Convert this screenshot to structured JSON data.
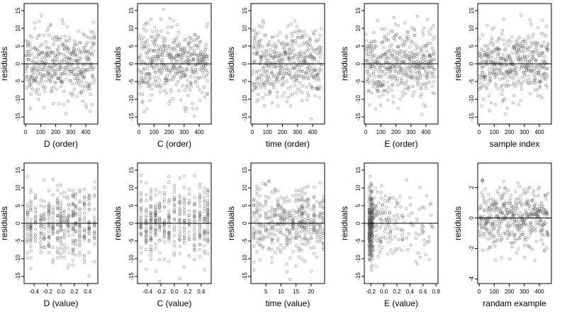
{
  "chart_data": [
    {
      "type": "scatter",
      "xlabel": "D (order)",
      "ylabel": "residuals",
      "xlim": [
        -10,
        480
      ],
      "ylim": [
        -17,
        17
      ],
      "xticks": [
        0,
        100,
        200,
        300,
        400
      ],
      "yticks": [
        -15,
        -10,
        -5,
        0,
        5,
        10,
        15
      ],
      "hline": 0,
      "pattern": "order",
      "seed": 11
    },
    {
      "type": "scatter",
      "xlabel": "C (order)",
      "ylabel": "residuals",
      "xlim": [
        -10,
        480
      ],
      "ylim": [
        -17,
        17
      ],
      "xticks": [
        0,
        100,
        200,
        300,
        400
      ],
      "yticks": [
        -15,
        -10,
        -5,
        0,
        5,
        10,
        15
      ],
      "hline": 0,
      "pattern": "order",
      "seed": 23
    },
    {
      "type": "scatter",
      "xlabel": "time (order)",
      "ylabel": "residuals",
      "xlim": [
        -10,
        480
      ],
      "ylim": [
        -17,
        17
      ],
      "xticks": [
        0,
        100,
        200,
        300,
        400
      ],
      "yticks": [
        -15,
        -10,
        -5,
        0,
        5,
        10,
        15
      ],
      "hline": 0,
      "pattern": "order",
      "seed": 37
    },
    {
      "type": "scatter",
      "xlabel": "E (order)",
      "ylabel": "residuals",
      "xlim": [
        -10,
        480
      ],
      "ylim": [
        -17,
        17
      ],
      "xticks": [
        0,
        100,
        200,
        300,
        400
      ],
      "yticks": [
        -15,
        -10,
        -5,
        0,
        5,
        10,
        15
      ],
      "hline": 0,
      "pattern": "order",
      "seed": 41
    },
    {
      "type": "scatter",
      "xlabel": "sample index",
      "ylabel": "residuals",
      "xlim": [
        -10,
        480
      ],
      "ylim": [
        -17,
        17
      ],
      "xticks": [
        0,
        100,
        200,
        300,
        400
      ],
      "yticks": [
        -15,
        -10,
        -5,
        0,
        5,
        10,
        15
      ],
      "hline": 0,
      "pattern": "order",
      "seed": 53
    },
    {
      "type": "scatter",
      "xlabel": "D (value)",
      "ylabel": "residuals",
      "xlim": [
        -0.55,
        0.55
      ],
      "ylim": [
        -17,
        17
      ],
      "xticks": [
        -0.4,
        -0.2,
        0.0,
        0.2,
        0.4
      ],
      "xtick_labels": [
        "-0.4",
        "-0.2",
        "0.0",
        "0.2",
        "0.4"
      ],
      "yticks": [
        -15,
        -10,
        -5,
        0,
        5,
        10,
        15
      ],
      "hline": 0,
      "pattern": "columns",
      "columns": [
        -0.5,
        -0.45,
        -0.38,
        -0.3,
        -0.25,
        -0.18,
        -0.12,
        -0.05,
        0.0,
        0.05,
        0.1,
        0.12,
        0.18,
        0.22,
        0.28,
        0.35,
        0.42,
        0.5
      ],
      "seed": 61
    },
    {
      "type": "scatter",
      "xlabel": "C (value)",
      "ylabel": "residuals",
      "xlim": [
        -0.55,
        0.55
      ],
      "ylim": [
        -17,
        17
      ],
      "xticks": [
        -0.4,
        -0.2,
        0.0,
        0.2,
        0.4
      ],
      "xtick_labels": [
        "-0.4",
        "-0.2",
        "0.0",
        "0.2",
        "0.4"
      ],
      "yticks": [
        -15,
        -10,
        -5,
        0,
        5,
        10,
        15
      ],
      "hline": 0,
      "pattern": "columns",
      "columns": [
        -0.5,
        -0.42,
        -0.35,
        -0.28,
        -0.22,
        -0.15,
        -0.08,
        0.0,
        0.08,
        0.15,
        0.22,
        0.3,
        0.38,
        0.45,
        0.5
      ],
      "seed": 67
    },
    {
      "type": "scatter",
      "xlabel": "time (value)",
      "ylabel": "residuals",
      "xlim": [
        0,
        24.5
      ],
      "ylim": [
        -17,
        17
      ],
      "xticks": [
        5,
        10,
        15,
        20
      ],
      "yticks": [
        -15,
        -10,
        -5,
        0,
        5,
        10,
        15
      ],
      "hline": 0,
      "pattern": "columns",
      "columns": [
        1,
        2,
        3,
        4,
        5,
        6,
        7,
        8,
        9,
        10,
        11,
        12,
        13,
        14,
        15,
        16,
        17,
        18,
        19,
        20,
        21,
        22,
        23,
        24
      ],
      "seed": 71
    },
    {
      "type": "scatter",
      "xlabel": "E (value)",
      "ylabel": "residuals",
      "xlim": [
        -0.3,
        0.83
      ],
      "ylim": [
        -17,
        17
      ],
      "xticks": [
        -0.2,
        0.0,
        0.2,
        0.4,
        0.6,
        0.8
      ],
      "xtick_labels": [
        "-0.2",
        "0.0",
        "0.2",
        "0.4",
        "0.6",
        "0.8"
      ],
      "yticks": [
        -15,
        -10,
        -5,
        0,
        5,
        10,
        15
      ],
      "hline": 0,
      "pattern": "skewed",
      "seed": 79
    },
    {
      "type": "scatter",
      "xlabel": "randam example",
      "ylabel": "residuals",
      "xlim": [
        -10,
        480
      ],
      "ylim": [
        -4.3,
        3.6
      ],
      "xticks": [
        0,
        100,
        200,
        300,
        400
      ],
      "yticks": [
        -4,
        -2,
        0,
        2
      ],
      "hline": 0,
      "pattern": "order",
      "scale": 1,
      "seed": 83
    }
  ]
}
